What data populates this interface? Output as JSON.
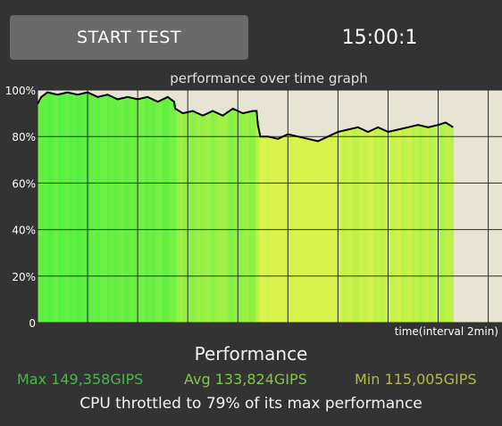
{
  "header": {
    "start_label": "START TEST",
    "timer": "15:00:1"
  },
  "chart_data": {
    "type": "line",
    "title": "performance over time graph",
    "xlabel": "time(interval 2min)",
    "ylabel": "",
    "y_unit": "%",
    "ylim": [
      0,
      100
    ],
    "y_ticks": [
      "0",
      "20%",
      "40%",
      "60%",
      "80%",
      "100%"
    ],
    "x_unit": "min",
    "xlim": [
      0,
      16.6
    ],
    "grid": true,
    "series": [
      {
        "values": [
          [
            0,
            94
          ],
          [
            0.15,
            97
          ],
          [
            0.4,
            99
          ],
          [
            0.8,
            98
          ],
          [
            1.2,
            99
          ],
          [
            1.6,
            98
          ],
          [
            2.0,
            99
          ],
          [
            2.4,
            97
          ],
          [
            2.8,
            98
          ],
          [
            3.2,
            96
          ],
          [
            3.6,
            97
          ],
          [
            4.0,
            96
          ],
          [
            4.4,
            97
          ],
          [
            4.8,
            95
          ],
          [
            5.2,
            97
          ],
          [
            5.45,
            95
          ],
          [
            5.5,
            92
          ],
          [
            5.8,
            90
          ],
          [
            6.2,
            91
          ],
          [
            6.6,
            89
          ],
          [
            7.0,
            91
          ],
          [
            7.4,
            89
          ],
          [
            7.8,
            92
          ],
          [
            8.2,
            90
          ],
          [
            8.6,
            91
          ],
          [
            8.75,
            91
          ],
          [
            8.8,
            85
          ],
          [
            8.9,
            80
          ],
          [
            9.2,
            80
          ],
          [
            9.6,
            79
          ],
          [
            10.0,
            81
          ],
          [
            10.4,
            80
          ],
          [
            10.8,
            79
          ],
          [
            11.2,
            78
          ],
          [
            11.6,
            80
          ],
          [
            12.0,
            82
          ],
          [
            12.4,
            83
          ],
          [
            12.8,
            84
          ],
          [
            13.2,
            82
          ],
          [
            13.6,
            84
          ],
          [
            14.0,
            82
          ],
          [
            14.4,
            83
          ],
          [
            14.8,
            84
          ],
          [
            15.2,
            85
          ],
          [
            15.6,
            84
          ],
          [
            16.0,
            85
          ],
          [
            16.3,
            86
          ],
          [
            16.6,
            84
          ]
        ],
        "color": "#000000"
      }
    ],
    "bars_color_start": "#4cf040",
    "bars_color_end": "#d9f24c",
    "background_color": "#e8e4d3"
  },
  "performance": {
    "title": "Performance",
    "max": "Max 149,358GIPS",
    "avg": "Avg 133,824GIPS",
    "min": "Min 115,005GIPS",
    "throttle": "CPU throttled to 79% of its max performance"
  }
}
